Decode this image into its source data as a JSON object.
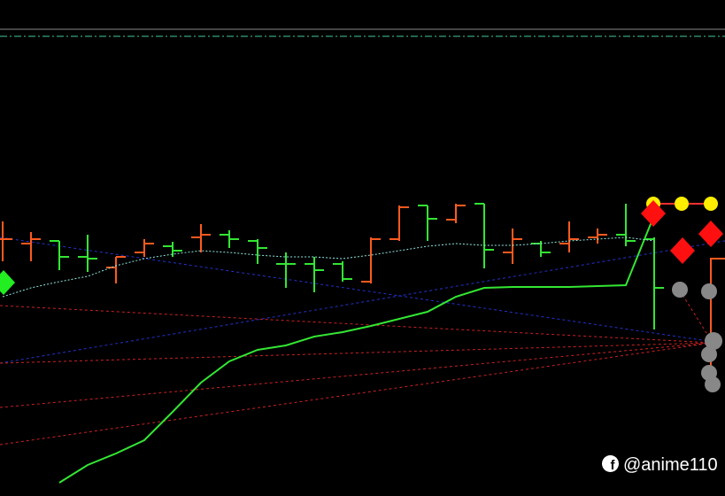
{
  "chart_data": {
    "type": "ohlc",
    "categories": [
      null,
      null,
      null,
      null,
      null,
      null,
      null,
      null,
      null,
      null,
      null,
      null,
      null,
      null,
      null,
      null,
      null,
      null,
      null,
      null,
      null,
      null,
      null,
      null
    ],
    "open": [
      29.0,
      28.5,
      28.8,
      27.0,
      25.8,
      27.5,
      28.2,
      29.2,
      29.5,
      28.8,
      26.2,
      26.2,
      26.2,
      24.2,
      29.0,
      32.8,
      31.2,
      33.0,
      27.5,
      28.5,
      28.5,
      29.2,
      29.5,
      29.0
    ],
    "high": [
      31.0,
      29.8,
      28.8,
      29.5,
      27.0,
      29.0,
      28.7,
      30.7,
      30.0,
      29.0,
      27.5,
      27.0,
      26.5,
      29.2,
      32.8,
      32.8,
      33.0,
      33.0,
      30.2,
      28.8,
      31.0,
      30.2,
      33.0,
      29.2
    ],
    "low": [
      26.5,
      26.5,
      25.5,
      25.3,
      24.0,
      27.0,
      27.0,
      27.5,
      28.0,
      26.2,
      23.5,
      23.0,
      24.2,
      24.0,
      28.8,
      28.8,
      30.8,
      25.7,
      26.2,
      27.0,
      27.5,
      28.5,
      28.2,
      18.8
    ],
    "close": [
      29.0,
      29.0,
      27.0,
      26.8,
      27.0,
      28.5,
      27.7,
      29.5,
      29.0,
      28.0,
      26.2,
      25.5,
      24.5,
      29.0,
      32.6,
      31.3,
      32.8,
      27.8,
      29.0,
      27.5,
      29.0,
      29.5,
      28.8,
      23.5
    ],
    "bar_colors": [
      "#ff5a1f",
      "#ff5a1f",
      "#33e633",
      "#33e633",
      "#ff5a1f",
      "#ff5a1f",
      "#33e633",
      "#ff5a1f",
      "#33e633",
      "#33e633",
      "#33e633",
      "#33e633",
      "#33e633",
      "#ff5a1f",
      "#ff5a1f",
      "#33e633",
      "#ff5a1f",
      "#33e633",
      "#ff5a1f",
      "#33e633",
      "#ff5a1f",
      "#ff5a1f",
      "#33e633",
      "#33e633"
    ],
    "series": [
      {
        "color": "#33e633",
        "style": "solid",
        "values": [
          null,
          null,
          1.5,
          3.5,
          4.8,
          6.3,
          9.5,
          12.8,
          15.2,
          16.5,
          17.0,
          18.0,
          18.5,
          19.2,
          20.0,
          20.8,
          22.5,
          23.5,
          23.6,
          23.6,
          23.6,
          23.7,
          23.8,
          31.7
        ]
      },
      {
        "color": "#8fe8e0",
        "style": "dotted",
        "values": [
          22.5,
          23.5,
          24.2,
          24.8,
          26.0,
          26.8,
          27.3,
          27.7,
          27.5,
          27.2,
          27.0,
          27.0,
          26.8,
          27.2,
          27.7,
          28.2,
          28.5,
          28.3,
          28.3,
          28.5,
          28.8,
          29.0,
          29.2,
          28.8
        ]
      }
    ],
    "ylim": [
      0,
      56
    ]
  },
  "watermark": "@anime110"
}
